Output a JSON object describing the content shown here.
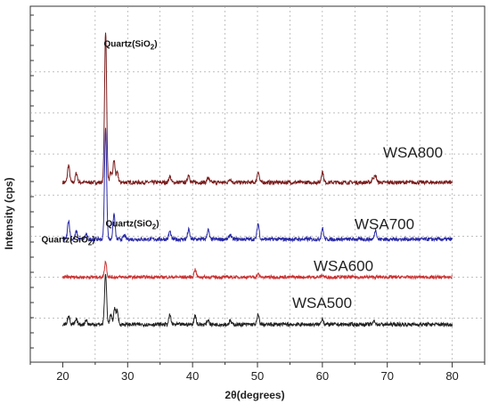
{
  "chart_data": {
    "type": "line",
    "xlabel": "2θ(degrees)",
    "ylabel": "Intensity (cps)",
    "xlim": [
      15,
      85
    ],
    "x_ticks": [
      20,
      30,
      40,
      50,
      60,
      70,
      80
    ],
    "grid": true,
    "x_range_measured": [
      20,
      80
    ],
    "series": [
      {
        "name": "WSA800",
        "color": "#7a1c1c",
        "baseline": 5.3,
        "noise": 0.06,
        "peaks": [
          [
            20.9,
            0.55
          ],
          [
            22.1,
            0.3
          ],
          [
            26.6,
            4.8
          ],
          [
            27.4,
            0.3
          ],
          [
            27.9,
            0.7
          ],
          [
            28.4,
            0.3
          ],
          [
            36.5,
            0.2
          ],
          [
            39.4,
            0.25
          ],
          [
            42.4,
            0.15
          ],
          [
            45.8,
            0.12
          ],
          [
            50.1,
            0.35
          ],
          [
            60.0,
            0.35
          ],
          [
            67.8,
            0.15
          ],
          [
            68.2,
            0.2
          ]
        ]
      },
      {
        "name": "WSA700",
        "color": "#2a2aa8",
        "baseline": 3.5,
        "noise": 0.06,
        "peaks": [
          [
            20.9,
            0.6
          ],
          [
            22.1,
            0.25
          ],
          [
            23.6,
            0.15
          ],
          [
            26.6,
            3.5
          ],
          [
            27.9,
            0.8
          ],
          [
            29.5,
            0.12
          ],
          [
            36.5,
            0.25
          ],
          [
            39.4,
            0.3
          ],
          [
            42.4,
            0.3
          ],
          [
            45.8,
            0.15
          ],
          [
            50.1,
            0.5
          ],
          [
            60.0,
            0.35
          ],
          [
            68.2,
            0.3
          ]
        ]
      },
      {
        "name": "WSA600",
        "color": "#cc3333",
        "baseline": 2.3,
        "noise": 0.05,
        "peaks": [
          [
            26.6,
            0.5
          ],
          [
            40.4,
            0.25
          ],
          [
            50.1,
            0.1
          ],
          [
            60.0,
            0.06
          ]
        ]
      },
      {
        "name": "WSA500",
        "color": "#222222",
        "baseline": 0.8,
        "noise": 0.06,
        "peaks": [
          [
            20.9,
            0.3
          ],
          [
            22.1,
            0.15
          ],
          [
            23.6,
            0.15
          ],
          [
            26.6,
            1.6
          ],
          [
            27.4,
            0.3
          ],
          [
            28.0,
            0.5
          ],
          [
            28.4,
            0.4
          ],
          [
            36.5,
            0.3
          ],
          [
            40.4,
            0.3
          ],
          [
            42.4,
            0.15
          ],
          [
            45.8,
            0.12
          ],
          [
            50.1,
            0.3
          ],
          [
            60.0,
            0.2
          ],
          [
            68.0,
            0.12
          ]
        ]
      }
    ],
    "annotations": [
      {
        "text": "Quartz(SiO",
        "sub": "2",
        "close": ")",
        "series": "WSA800"
      },
      {
        "text": "Quartz(SiO",
        "sub": "2",
        "close": ")",
        "series": "WSA700"
      },
      {
        "text": "Quartz(SiO",
        "sub": "2",
        "close": ")",
        "series": "WSA600"
      },
      {
        "text": "Quartz(SiO",
        "sub": "2",
        "close": ")",
        "series": "WSA500"
      }
    ]
  }
}
